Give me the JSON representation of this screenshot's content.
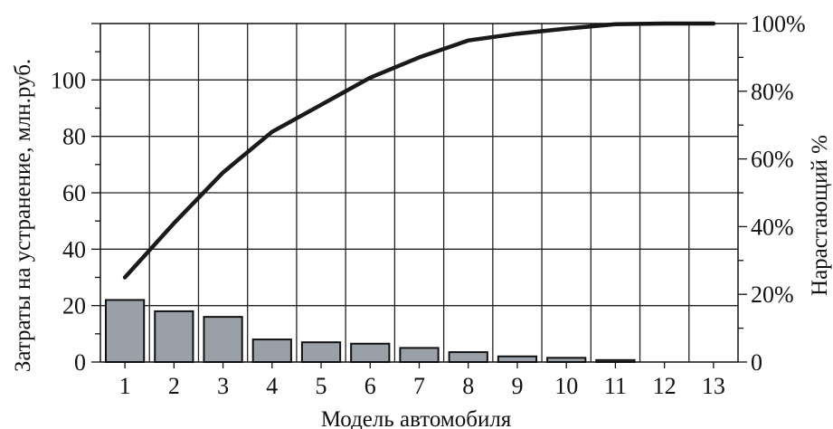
{
  "chart_data": {
    "type": "bar",
    "xlabel": "Модель автомобиля",
    "ylabel": "Затраты на устранение, млн.руб.",
    "y2label": "Нарастающий %",
    "categories": [
      "1",
      "2",
      "3",
      "4",
      "5",
      "6",
      "7",
      "8",
      "9",
      "10",
      "11",
      "12",
      "13"
    ],
    "series": [
      {
        "kind": "bar",
        "axis": "left",
        "values": [
          22,
          18,
          16,
          8,
          7,
          6.5,
          5,
          3.5,
          2,
          1.5,
          0.7,
          0,
          0
        ]
      },
      {
        "kind": "line",
        "axis": "right",
        "values": [
          25,
          41,
          56,
          68,
          76,
          84,
          90,
          95,
          97,
          98.5,
          99.8,
          100,
          100
        ]
      }
    ],
    "yticks": [
      0,
      20,
      40,
      60,
      80,
      100
    ],
    "ylim": [
      0,
      120
    ],
    "y2ticks": [
      "0",
      "20%",
      "40%",
      "60%",
      "80%",
      "100%"
    ],
    "y2lim": [
      0,
      100
    ],
    "grid": true,
    "colors": {
      "bar_fill": "#9aa0a8",
      "bar_stroke": "#111111",
      "line": "#1a1a1a",
      "grid": "#222222"
    }
  }
}
